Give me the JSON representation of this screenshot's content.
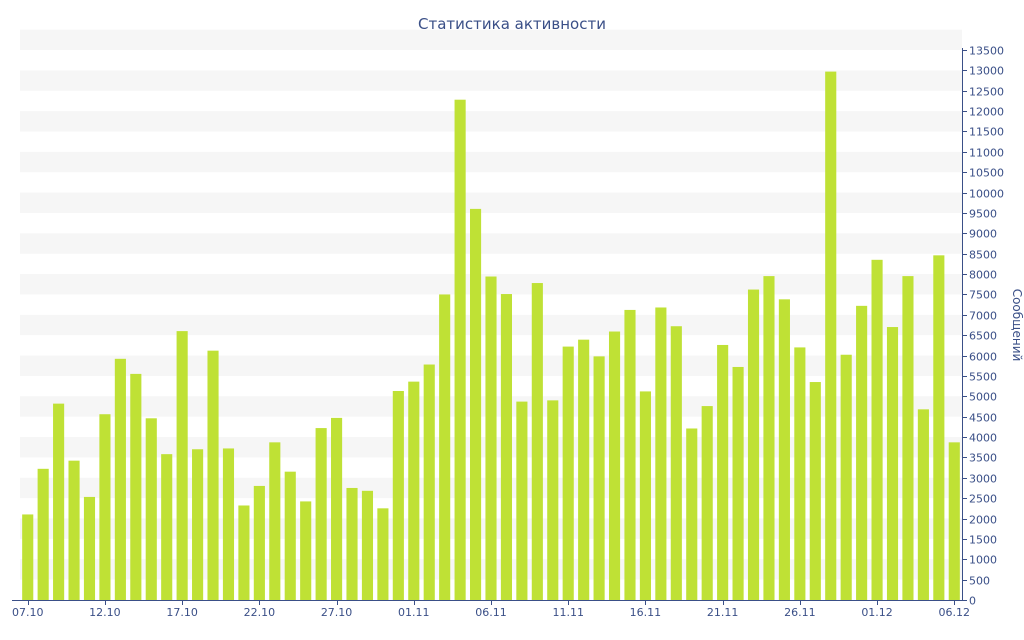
{
  "chart_data": {
    "type": "bar",
    "title": "Статистика активности",
    "ylabel": "Сообщений",
    "xlabel": "",
    "ylim": [
      0,
      13500
    ],
    "ytick_step": 500,
    "grid": "horizontal bands",
    "categories": [
      "07.10",
      "08.10",
      "09.10",
      "10.10",
      "11.10",
      "12.10",
      "13.10",
      "14.10",
      "15.10",
      "16.10",
      "17.10",
      "18.10",
      "19.10",
      "20.10",
      "21.10",
      "22.10",
      "23.10",
      "24.10",
      "25.10",
      "26.10",
      "27.10",
      "28.10",
      "29.10",
      "30.10",
      "31.10",
      "01.11",
      "02.11",
      "03.11",
      "04.11",
      "05.11",
      "06.11",
      "07.11",
      "08.11",
      "09.11",
      "10.11",
      "11.11",
      "12.11",
      "13.11",
      "14.11",
      "15.11",
      "16.11",
      "17.11",
      "18.11",
      "19.11",
      "20.11",
      "21.11",
      "22.11",
      "23.11",
      "24.11",
      "25.11",
      "26.11",
      "27.11",
      "28.11",
      "29.11",
      "30.11",
      "01.12",
      "02.12",
      "03.12",
      "04.12",
      "05.12",
      "06.12"
    ],
    "x_tick_labels": [
      "07.10",
      "12.10",
      "17.10",
      "22.10",
      "27.10",
      "01.11",
      "06.11",
      "11.11",
      "16.11",
      "21.11",
      "26.11",
      "01.12",
      "06.12"
    ],
    "values": [
      2100,
      3220,
      4820,
      3420,
      2530,
      4560,
      5920,
      5550,
      4460,
      3580,
      6600,
      3700,
      6120,
      3720,
      2320,
      2800,
      3870,
      3150,
      2420,
      4220,
      4470,
      2750,
      2680,
      2250,
      5130,
      5360,
      5780,
      7500,
      12280,
      9600,
      7940,
      7510,
      4870,
      7780,
      4900,
      6220,
      6390,
      5980,
      6590,
      7120,
      5120,
      7180,
      6720,
      4210,
      4760,
      6260,
      5720,
      7620,
      7950,
      7380,
      6200,
      5350,
      12970,
      6020,
      7220,
      8350,
      6700,
      7950,
      4680,
      8460,
      3870
    ],
    "bar_color": "#bfe135",
    "axis_color": "#3a4f87",
    "band_color": "#f6f6f6"
  }
}
